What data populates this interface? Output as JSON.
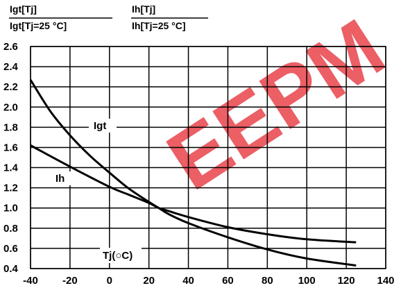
{
  "watermark": {
    "text": "EEPM",
    "color": "#e8434a"
  },
  "chart_data": {
    "type": "line",
    "ylabel_left": {
      "numerator": "Igt[Tj]",
      "denominator": "Igt[Tj=25 °C]"
    },
    "ylabel_right": {
      "numerator": "Ih[Tj]",
      "denominator": "Ih[Tj=25 °C]"
    },
    "xlabel": "Tj(○C)",
    "xlim": [
      -40,
      140
    ],
    "ylim": [
      0.4,
      2.6
    ],
    "x_ticks": [
      "-40",
      "-20",
      "0",
      "20",
      "40",
      "60",
      "80",
      "100",
      "120",
      "140"
    ],
    "y_ticks": [
      "0.4",
      "0.6",
      "0.8",
      "1.0",
      "1.2",
      "1.4",
      "1.6",
      "1.8",
      "2.0",
      "2.2",
      "2.4",
      "2.6"
    ],
    "grid": true,
    "series": [
      {
        "name": "Igt",
        "color": "#000000",
        "x": [
          -40,
          -30,
          -20,
          -10,
          0,
          10,
          20,
          25,
          30,
          40,
          60,
          80,
          100,
          125
        ],
        "y": [
          2.27,
          1.96,
          1.72,
          1.52,
          1.35,
          1.19,
          1.06,
          1.0,
          0.94,
          0.85,
          0.71,
          0.59,
          0.5,
          0.43
        ]
      },
      {
        "name": "Ih",
        "color": "#000000",
        "x": [
          -40,
          -20,
          0,
          10,
          20,
          25,
          30,
          40,
          60,
          80,
          100,
          125
        ],
        "y": [
          1.62,
          1.41,
          1.21,
          1.13,
          1.05,
          1.0,
          0.97,
          0.91,
          0.81,
          0.74,
          0.69,
          0.66
        ]
      }
    ],
    "series_labels": [
      "Igt",
      "Ih"
    ]
  }
}
